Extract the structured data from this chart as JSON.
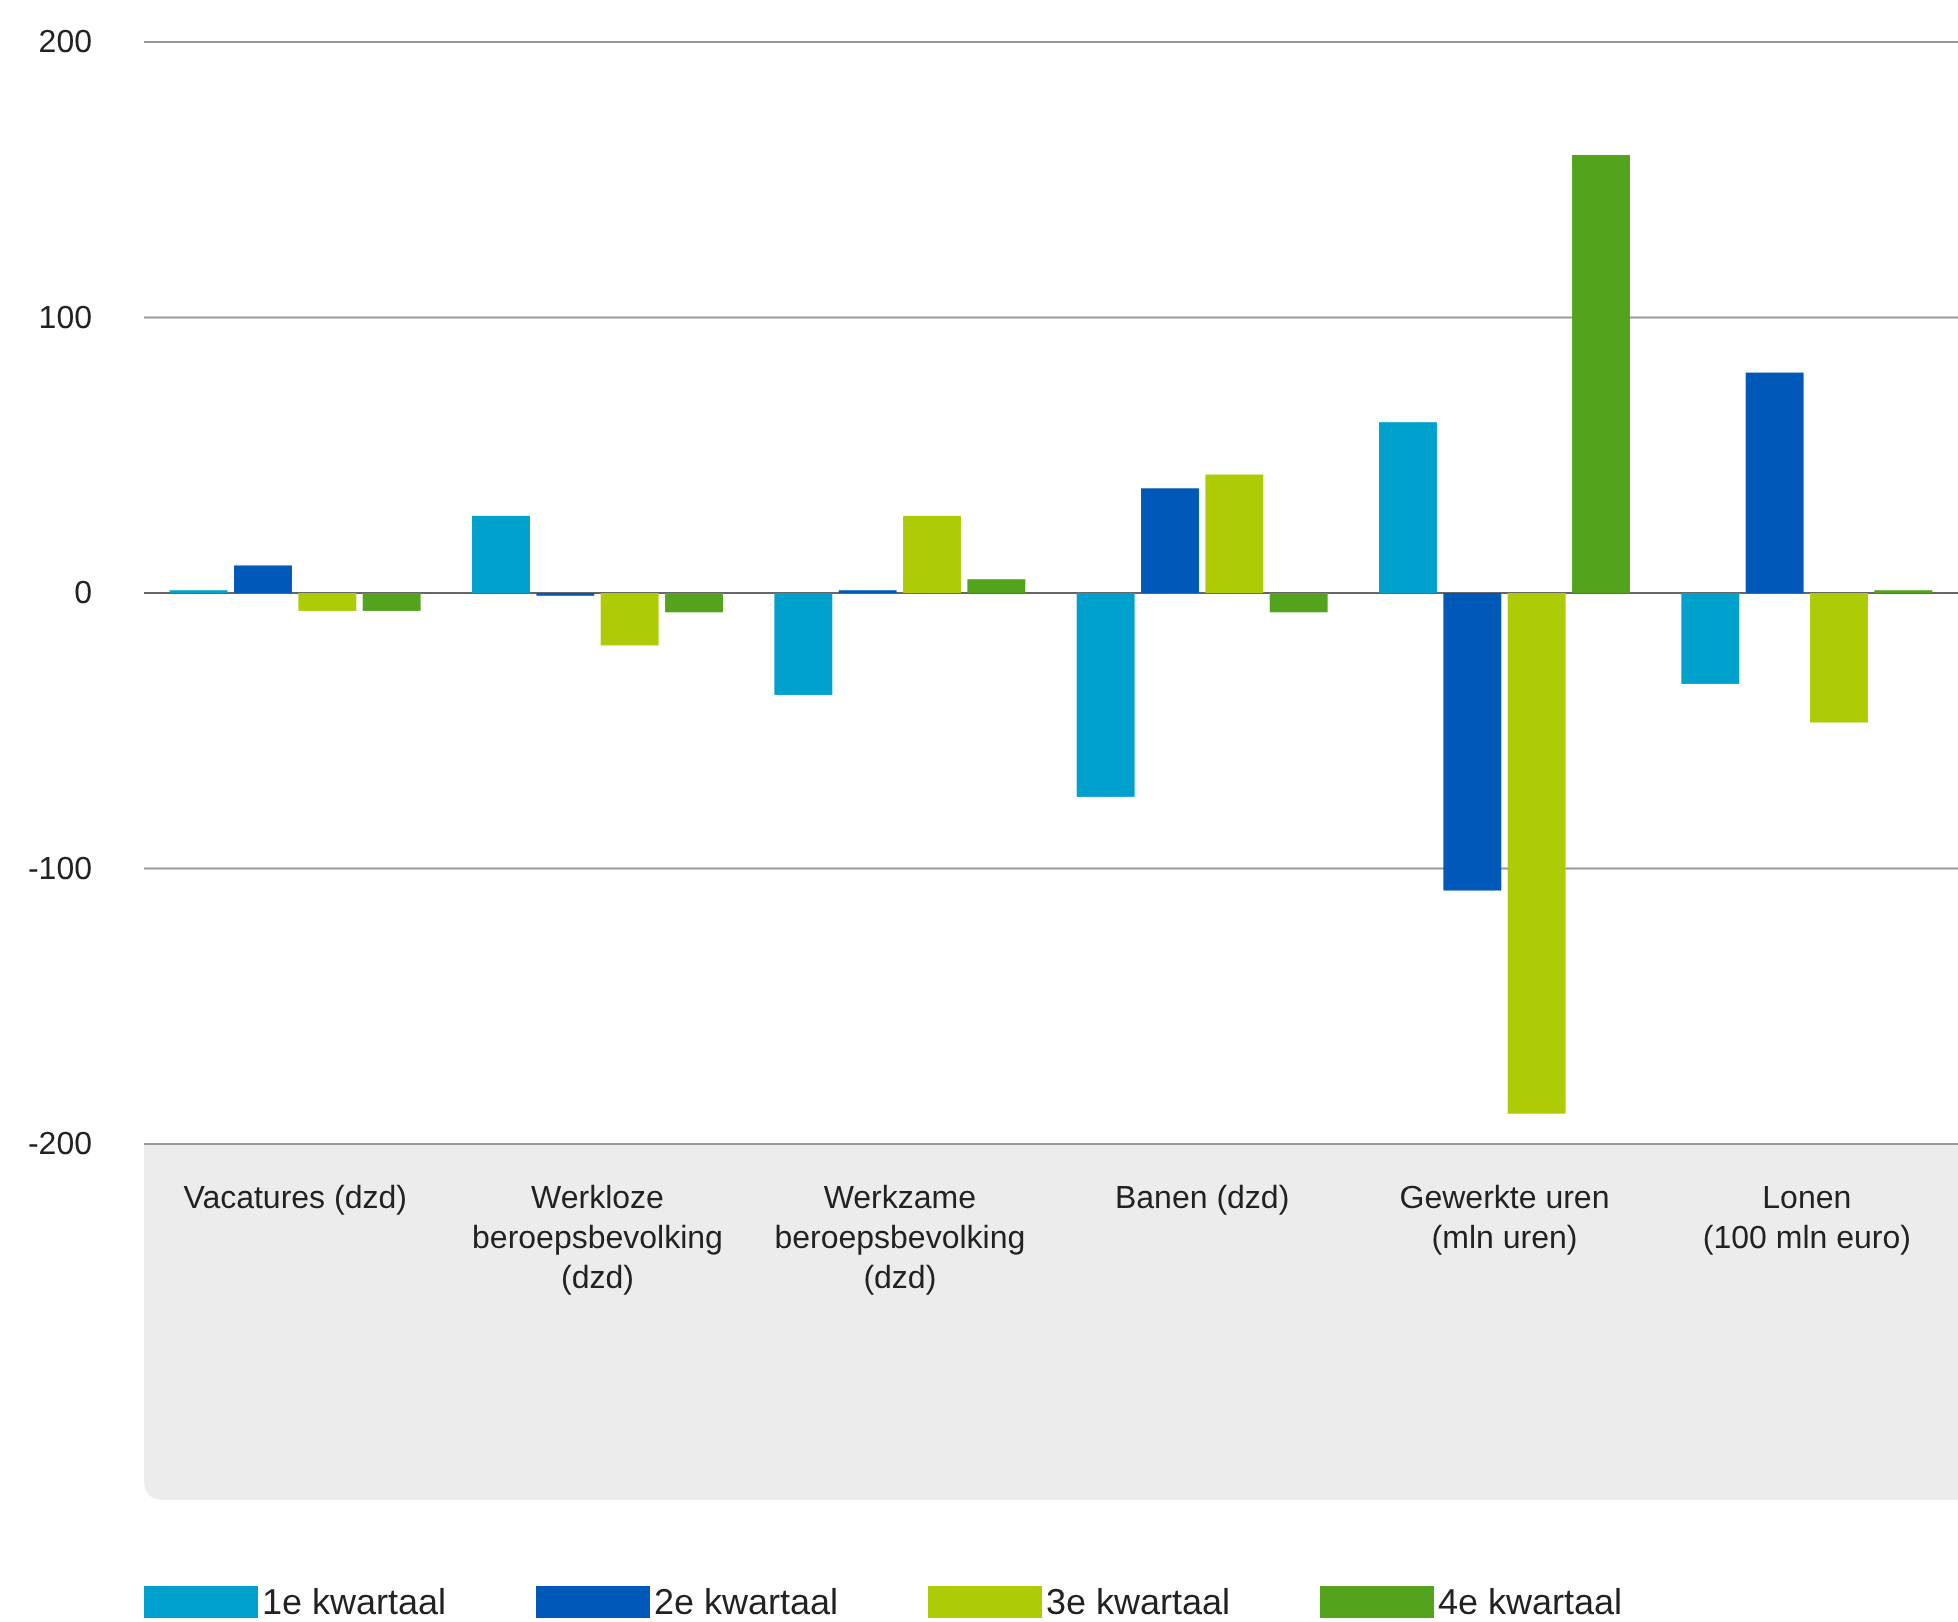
{
  "chart_data": {
    "type": "bar",
    "categories": [
      "Vacatures (dzd)",
      "Werkloze beroepsbevolking (dzd)",
      "Werkzame beroepsbevolking (dzd)",
      "Banen (dzd)",
      "Gewerkte uren (mln uren)",
      "Lonen (100 mln euro)"
    ],
    "series": [
      {
        "name": "1e kwartaal",
        "color": "#00a1cd",
        "values": [
          1,
          28,
          -37,
          -74,
          62,
          -33
        ]
      },
      {
        "name": "2e kwartaal",
        "color": "#0058b8",
        "values": [
          10,
          -1,
          1,
          38,
          -108,
          80
        ]
      },
      {
        "name": "3e kwartaal",
        "color": "#afcb05",
        "values": [
          -6.5,
          -19,
          28,
          43,
          -189,
          -47
        ]
      },
      {
        "name": "4e kwartaal",
        "color": "#53a31d",
        "values": [
          -6.5,
          -7,
          5,
          -7,
          159,
          1
        ]
      }
    ],
    "ylim": [
      -200,
      200
    ],
    "yticks": [
      -200,
      -100,
      0,
      100,
      200
    ],
    "grid": "y",
    "legend": "bottom"
  }
}
